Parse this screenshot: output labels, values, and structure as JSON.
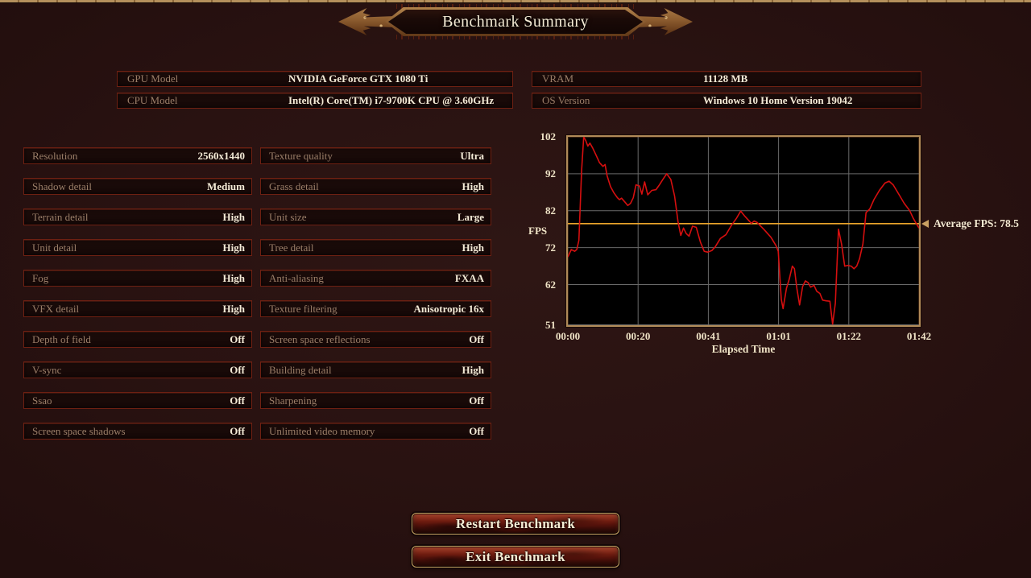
{
  "banner": {
    "title": "Benchmark Summary"
  },
  "system_info": {
    "left": [
      {
        "label": "GPU Model",
        "value": "NVIDIA GeForce GTX 1080 Ti"
      },
      {
        "label": "CPU Model",
        "value": "Intel(R) Core(TM) i7-9700K CPU @ 3.60GHz"
      }
    ],
    "right": [
      {
        "label": "VRAM",
        "value": "11128 MB"
      },
      {
        "label": "OS Version",
        "value": "Windows 10 Home Version 19042"
      }
    ]
  },
  "settings": {
    "left": [
      {
        "label": "Resolution",
        "value": "2560x1440"
      },
      {
        "label": "Shadow detail",
        "value": "Medium"
      },
      {
        "label": "Terrain detail",
        "value": "High"
      },
      {
        "label": "Unit detail",
        "value": "High"
      },
      {
        "label": "Fog",
        "value": "High"
      },
      {
        "label": "VFX detail",
        "value": "High"
      },
      {
        "label": "Depth of field",
        "value": "Off"
      },
      {
        "label": "V-sync",
        "value": "Off"
      },
      {
        "label": "Ssao",
        "value": "Off"
      },
      {
        "label": "Screen space shadows",
        "value": "Off"
      }
    ],
    "right": [
      {
        "label": "Texture quality",
        "value": "Ultra"
      },
      {
        "label": "Grass detail",
        "value": "High"
      },
      {
        "label": "Unit size",
        "value": "Large"
      },
      {
        "label": "Tree detail",
        "value": "High"
      },
      {
        "label": "Anti-aliasing",
        "value": "FXAA"
      },
      {
        "label": "Texture filtering",
        "value": "Anisotropic 16x"
      },
      {
        "label": "Screen space reflections",
        "value": "Off"
      },
      {
        "label": "Building detail",
        "value": "High"
      },
      {
        "label": "Sharpening",
        "value": "Off"
      },
      {
        "label": "Unlimited video memory",
        "value": "Off"
      }
    ]
  },
  "chart_data": {
    "type": "line",
    "title": "",
    "xlabel": "Elapsed Time",
    "ylabel": "FPS",
    "x_tick_labels": [
      "00:00",
      "00:20",
      "00:41",
      "01:01",
      "01:22",
      "01:42"
    ],
    "y_ticks": [
      102,
      92,
      82,
      72,
      62,
      51
    ],
    "xlim": [
      0,
      102
    ],
    "ylim": [
      51,
      102
    ],
    "grid": true,
    "legend": "none",
    "average_fps": 78.5,
    "average_label": "Average FPS: 78.5",
    "line_color": "#d60f0f",
    "average_line_color": "#eca62b",
    "grid_color": "#6a6a6a",
    "plot_bg": "#000000",
    "series": [
      {
        "name": "FPS",
        "x": [
          0,
          1,
          2,
          2.6,
          3.2,
          4,
          4.6,
          5.2,
          5.8,
          6.4,
          7.2,
          8.2,
          9.2,
          10.2,
          10.8,
          11.4,
          12.4,
          13.4,
          14.4,
          15,
          15.6,
          16.6,
          17.4,
          18.2,
          19,
          19.8,
          20.8,
          21.5,
          22.3,
          23.2,
          24.4,
          25.6,
          26.6,
          27.6,
          28.7,
          29.9,
          31,
          32,
          32.8,
          33.6,
          34.4,
          35.2,
          36.2,
          37.3,
          38.5,
          39.6,
          40.6,
          41.8,
          42.8,
          44.3,
          45.9,
          47.5,
          49,
          50.2,
          51.4,
          52.5,
          53.3,
          54.1,
          55,
          57,
          59,
          60.5,
          61.1,
          62,
          62.5,
          63.5,
          64.3,
          65.2,
          65.8,
          66.5,
          67.3,
          68.2,
          69,
          69.8,
          70.5,
          71.5,
          72.3,
          73.2,
          74,
          75,
          76.1,
          76.9,
          77.7,
          78.6,
          79.5,
          80.4,
          81.3,
          82.3,
          83.1,
          83.9,
          84.7,
          85.7,
          86.6,
          87.7,
          88.9,
          90.5,
          92.1,
          93.3,
          94.5,
          96.1,
          97.7,
          99.3,
          100.3,
          101.2,
          102
        ],
        "y": [
          69.5,
          71.5,
          71,
          71.5,
          74,
          93,
          102,
          101,
          99.5,
          100.3,
          99,
          97,
          95,
          94,
          94.5,
          91.5,
          88.5,
          86.8,
          85.5,
          85,
          85.4,
          84.3,
          83.4,
          84,
          85.5,
          89,
          88.7,
          86.5,
          89.8,
          86.3,
          87.5,
          87.7,
          89,
          90.5,
          92,
          90.5,
          86,
          79,
          75.3,
          77.3,
          75.8,
          75.1,
          77.8,
          77.5,
          73.5,
          71,
          70.8,
          71.2,
          72.2,
          74.5,
          75.5,
          78,
          80,
          81.9,
          80.5,
          79.4,
          78.6,
          79.2,
          78.8,
          76.9,
          74.8,
          72.5,
          71,
          58,
          55.5,
          61,
          63.5,
          67,
          66.3,
          61,
          56.5,
          61.5,
          63,
          62.5,
          61.3,
          61.8,
          60.2,
          59.6,
          57.8,
          57.6,
          57.5,
          51.3,
          57,
          77,
          73,
          67,
          67.2,
          67,
          66.3,
          67,
          69,
          73,
          81.5,
          82.5,
          85,
          87.5,
          89.5,
          90,
          89,
          86.5,
          84,
          82,
          80,
          78.5,
          77.3
        ]
      }
    ]
  },
  "buttons": {
    "restart": "Restart Benchmark",
    "exit": "Exit Benchmark"
  },
  "colors": {
    "background": "#2a1412",
    "panel_border": "#6e2012",
    "panel_bg": "#170a09",
    "label_text": "#9a7e68",
    "value_text": "#f4ebd7",
    "chart_border": "#b08a58",
    "gold_accent": "#c9a063",
    "banner_copper": "#8a5a2e"
  }
}
